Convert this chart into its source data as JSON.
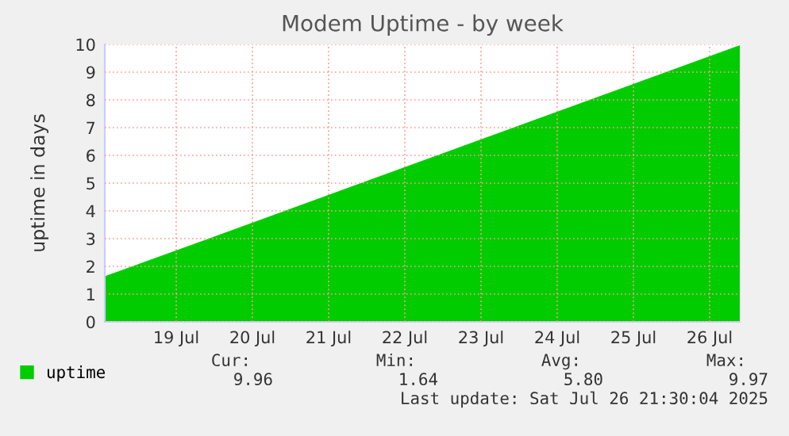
{
  "chart_data": {
    "type": "area",
    "title": "Modem Uptime - by week",
    "ylabel": "uptime in days",
    "x": [
      "2025-07-18T13:30",
      "2025-07-26T21:30"
    ],
    "series": [
      {
        "name": "uptime",
        "color": "#00cc00",
        "values": [
          1.64,
          9.97
        ]
      }
    ],
    "xlim": [
      "2025-07-18T13:30",
      "2025-07-26T21:30"
    ],
    "xticks": [
      {
        "value": "2025-07-19T12:00",
        "label": "19 Jul"
      },
      {
        "value": "2025-07-20T12:00",
        "label": "20 Jul"
      },
      {
        "value": "2025-07-21T12:00",
        "label": "21 Jul"
      },
      {
        "value": "2025-07-22T12:00",
        "label": "22 Jul"
      },
      {
        "value": "2025-07-23T12:00",
        "label": "23 Jul"
      },
      {
        "value": "2025-07-24T12:00",
        "label": "24 Jul"
      },
      {
        "value": "2025-07-25T12:00",
        "label": "25 Jul"
      },
      {
        "value": "2025-07-26T12:00",
        "label": "26 Jul"
      }
    ],
    "ylim": [
      0,
      10
    ],
    "yticks": [
      0,
      1,
      2,
      3,
      4,
      5,
      6,
      7,
      8,
      9,
      10
    ],
    "grid": true,
    "legend": "bottom",
    "annotations": [
      "Cur:",
      "Min:",
      "Avg:",
      "Max:",
      "9.96",
      "1.64",
      "5.80",
      "9.97",
      "Last update: Sat Jul 26 21:30:04 2025"
    ]
  }
}
